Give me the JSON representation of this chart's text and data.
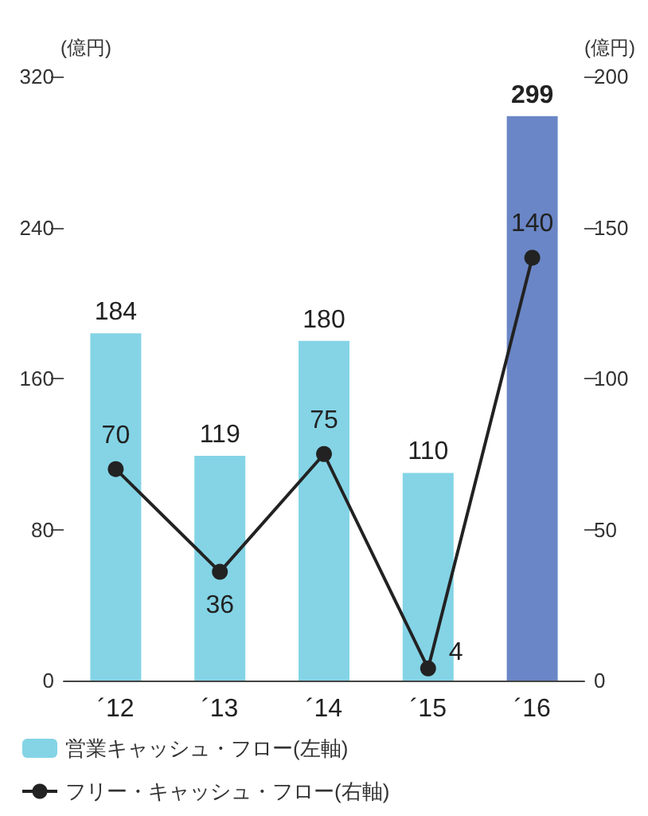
{
  "chart_data": {
    "type": "bar",
    "categories": [
      "´12",
      "´13",
      "´14",
      "´15",
      "´16"
    ],
    "ylabel": "(億円)",
    "y2label": "(億円)",
    "series": [
      {
        "name": "営業キャッシュ・フロー(左軸)",
        "color": "#84d4e6",
        "colors": [
          "#84d4e6",
          "#84d4e6",
          "#84d4e6",
          "#84d4e6",
          "#6a86c6"
        ],
        "values": [
          184,
          119,
          180,
          110,
          299
        ]
      },
      {
        "name": "フリー・キャッシュ・フロー(右軸)",
        "type": "line",
        "axis": "y2",
        "color": "#222222",
        "line_style": "solid",
        "values": [
          70,
          36,
          75,
          4,
          140
        ]
      }
    ],
    "ylim": [
      0,
      320
    ],
    "yticks": [
      0,
      80,
      160,
      240,
      320
    ],
    "y2lim": [
      0,
      200
    ],
    "y2ticks": [
      0,
      50,
      100,
      150,
      200
    ],
    "data_labels": true,
    "legend": "bottom left",
    "grid": false,
    "marker": "circle"
  }
}
